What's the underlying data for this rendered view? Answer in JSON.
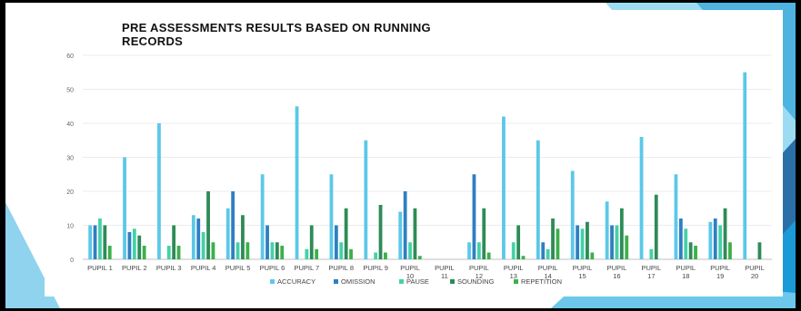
{
  "chart_data": {
    "type": "bar",
    "title": "PRE ASSESSMENTS RESULTS BASED ON RUNNING RECORDS",
    "xlabel": "",
    "ylabel": "",
    "ylim": [
      0,
      60
    ],
    "yticks": [
      0,
      10,
      20,
      30,
      40,
      50,
      60
    ],
    "grid": true,
    "legend_position": "bottom",
    "categories": [
      "PUPIL 1",
      "PUPIL 2",
      "PUPIL 3",
      "PUPIL 4",
      "PUPIL 5",
      "PUPIL 6",
      "PUPIL 7",
      "PUPIL 8",
      "PUPIL 9",
      "PUPIL 10",
      "PUPIL 11",
      "PUPIL 12",
      "PUPIL 13",
      "PUPIL 14",
      "PUPIL 15",
      "PUPIL 16",
      "PUPIL 17",
      "PUPIL 18",
      "PUPIL 19",
      "PUPIL 20"
    ],
    "series": [
      {
        "name": "ACCURACY",
        "color": "#5bc8e8",
        "values": [
          10,
          30,
          40,
          13,
          15,
          25,
          45,
          25,
          35,
          14,
          0,
          5,
          42,
          35,
          26,
          17,
          36,
          25,
          11,
          55
        ]
      },
      {
        "name": "OMISSION",
        "color": "#2f7fc1",
        "values": [
          10,
          8,
          0,
          12,
          20,
          10,
          0,
          10,
          0,
          20,
          0,
          25,
          0,
          5,
          10,
          10,
          0,
          12,
          12,
          0
        ]
      },
      {
        "name": "PAUSE",
        "color": "#44d1a8",
        "values": [
          12,
          9,
          4,
          8,
          5,
          5,
          3,
          5,
          2,
          5,
          0,
          5,
          5,
          3,
          9,
          10,
          3,
          9,
          10,
          0
        ]
      },
      {
        "name": "SOUNDING",
        "color": "#2e8b57",
        "values": [
          10,
          7,
          10,
          20,
          13,
          5,
          10,
          15,
          16,
          15,
          0,
          15,
          10,
          12,
          11,
          15,
          19,
          5,
          15,
          5
        ]
      },
      {
        "name": "REPETITION",
        "color": "#3cb04a",
        "values": [
          4,
          4,
          4,
          5,
          5,
          4,
          3,
          3,
          2,
          1,
          0,
          2,
          1,
          9,
          2,
          7,
          0,
          4,
          5,
          0
        ]
      }
    ]
  }
}
